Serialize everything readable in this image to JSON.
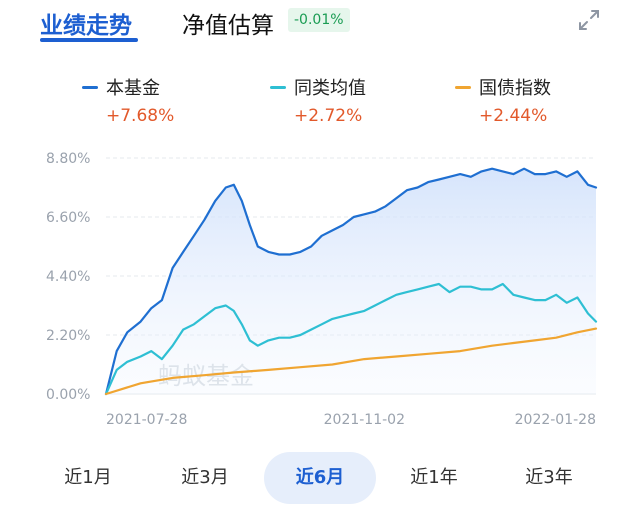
{
  "tabs": {
    "main": "业绩走势",
    "secondary": "净值估算",
    "estimate_change": "-0.01%"
  },
  "icons": {
    "expand": "expand-icon"
  },
  "colors": {
    "fund": "#1f6fd1",
    "peer": "#2ebfd3",
    "bond": "#f0a531",
    "accent": "#1d5fd1",
    "gain": "#e2592b"
  },
  "legend": [
    {
      "name": "本基金",
      "value": "+7.68%"
    },
    {
      "name": "同类均值",
      "value": "+2.72%"
    },
    {
      "name": "国债指数",
      "value": "+2.44%"
    }
  ],
  "watermark": "蚂蚁基金",
  "chart_data": {
    "type": "line",
    "y_ticks": [
      "8.80%",
      "6.60%",
      "4.40%",
      "2.20%",
      "0.00%"
    ],
    "ylim": [
      0,
      8.8
    ],
    "x_ticks": [
      "2021-07-28",
      "2021-11-02",
      "2022-01-28"
    ],
    "x_start": "2021-07-28",
    "x_end": "2022-01-28",
    "grid": true,
    "series": [
      {
        "name": "本基金",
        "area": true,
        "dates": [
          "2021-07-28",
          "2021-08-01",
          "2021-08-05",
          "2021-08-10",
          "2021-08-14",
          "2021-08-18",
          "2021-08-22",
          "2021-08-26",
          "2021-08-30",
          "2021-09-03",
          "2021-09-07",
          "2021-09-11",
          "2021-09-14",
          "2021-09-17",
          "2021-09-20",
          "2021-09-23",
          "2021-09-27",
          "2021-10-01",
          "2021-10-05",
          "2021-10-09",
          "2021-10-13",
          "2021-10-17",
          "2021-10-21",
          "2021-10-25",
          "2021-10-29",
          "2021-11-02",
          "2021-11-06",
          "2021-11-10",
          "2021-11-14",
          "2021-11-18",
          "2021-11-22",
          "2021-11-26",
          "2021-11-30",
          "2021-12-04",
          "2021-12-08",
          "2021-12-12",
          "2021-12-16",
          "2021-12-20",
          "2021-12-24",
          "2021-12-28",
          "2022-01-01",
          "2022-01-05",
          "2022-01-09",
          "2022-01-13",
          "2022-01-17",
          "2022-01-21",
          "2022-01-25",
          "2022-01-28"
        ],
        "values": [
          0.0,
          1.6,
          2.3,
          2.7,
          3.2,
          3.5,
          4.7,
          5.3,
          5.9,
          6.5,
          7.2,
          7.7,
          7.8,
          7.2,
          6.3,
          5.5,
          5.3,
          5.2,
          5.2,
          5.3,
          5.5,
          5.9,
          6.1,
          6.3,
          6.6,
          6.7,
          6.8,
          7.0,
          7.3,
          7.6,
          7.7,
          7.9,
          8.0,
          8.1,
          8.2,
          8.1,
          8.3,
          8.4,
          8.3,
          8.2,
          8.4,
          8.2,
          8.2,
          8.3,
          8.1,
          8.3,
          7.8,
          7.7
        ]
      },
      {
        "name": "同类均值",
        "area": false,
        "dates": [
          "2021-07-28",
          "2021-08-01",
          "2021-08-05",
          "2021-08-10",
          "2021-08-14",
          "2021-08-18",
          "2021-08-22",
          "2021-08-26",
          "2021-08-30",
          "2021-09-03",
          "2021-09-07",
          "2021-09-11",
          "2021-09-14",
          "2021-09-17",
          "2021-09-20",
          "2021-09-23",
          "2021-09-27",
          "2021-10-01",
          "2021-10-05",
          "2021-10-09",
          "2021-10-13",
          "2021-10-17",
          "2021-10-21",
          "2021-10-25",
          "2021-10-29",
          "2021-11-02",
          "2021-11-06",
          "2021-11-10",
          "2021-11-14",
          "2021-11-18",
          "2021-11-22",
          "2021-11-26",
          "2021-11-30",
          "2021-12-04",
          "2021-12-08",
          "2021-12-12",
          "2021-12-16",
          "2021-12-20",
          "2021-12-24",
          "2021-12-28",
          "2022-01-01",
          "2022-01-05",
          "2022-01-09",
          "2022-01-13",
          "2022-01-17",
          "2022-01-21",
          "2022-01-25",
          "2022-01-28"
        ],
        "values": [
          0.0,
          0.9,
          1.2,
          1.4,
          1.6,
          1.3,
          1.8,
          2.4,
          2.6,
          2.9,
          3.2,
          3.3,
          3.1,
          2.6,
          2.0,
          1.8,
          2.0,
          2.1,
          2.1,
          2.2,
          2.4,
          2.6,
          2.8,
          2.9,
          3.0,
          3.1,
          3.3,
          3.5,
          3.7,
          3.8,
          3.9,
          4.0,
          4.1,
          3.8,
          4.0,
          4.0,
          3.9,
          3.9,
          4.1,
          3.7,
          3.6,
          3.5,
          3.5,
          3.7,
          3.4,
          3.6,
          3.0,
          2.7
        ]
      },
      {
        "name": "国债指数",
        "area": false,
        "dates": [
          "2021-07-28",
          "2021-08-10",
          "2021-08-22",
          "2021-09-03",
          "2021-09-14",
          "2021-09-27",
          "2021-10-09",
          "2021-10-21",
          "2021-11-02",
          "2021-11-14",
          "2021-11-26",
          "2021-12-08",
          "2021-12-20",
          "2021-12-28",
          "2022-01-05",
          "2022-01-13",
          "2022-01-21",
          "2022-01-28"
        ],
        "values": [
          0.0,
          0.4,
          0.6,
          0.7,
          0.8,
          0.9,
          1.0,
          1.1,
          1.3,
          1.4,
          1.5,
          1.6,
          1.8,
          1.9,
          2.0,
          2.1,
          2.3,
          2.44
        ]
      }
    ]
  },
  "periods": [
    {
      "label": "近1月",
      "active": false
    },
    {
      "label": "近3月",
      "active": false
    },
    {
      "label": "近6月",
      "active": true
    },
    {
      "label": "近1年",
      "active": false
    },
    {
      "label": "近3年",
      "active": false
    }
  ]
}
